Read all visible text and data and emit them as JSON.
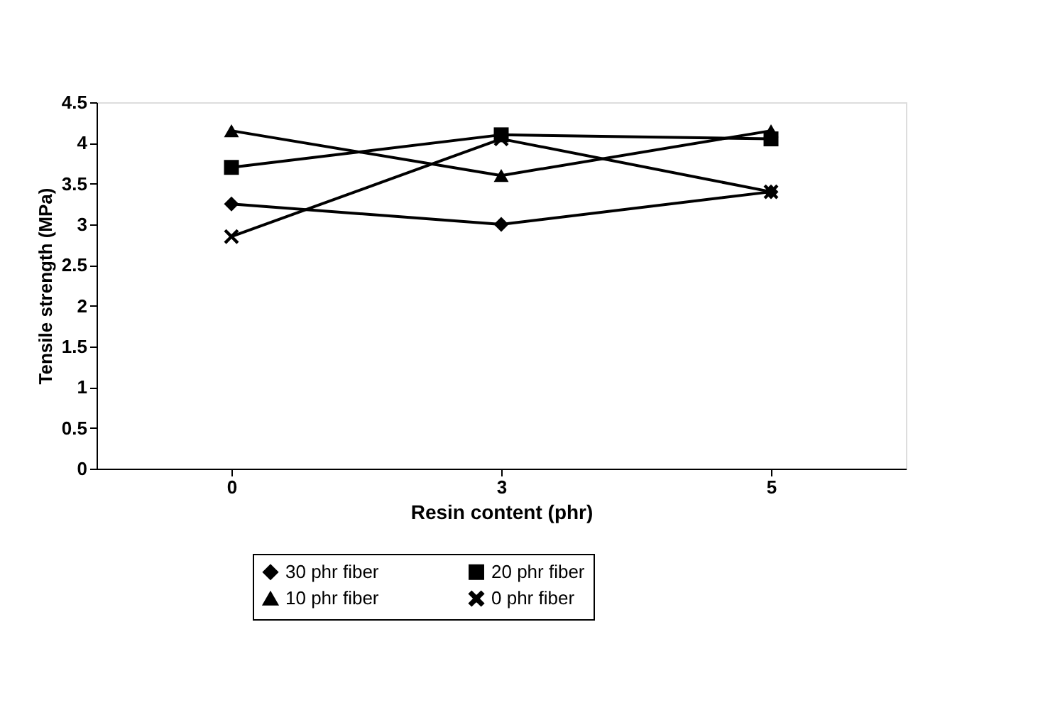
{
  "chart_data": {
    "type": "line",
    "xlabel": "Resin content (phr)",
    "ylabel": "Tensile strength (MPa)",
    "categories": [
      "0",
      "3",
      "5"
    ],
    "ylim": [
      0,
      4.5
    ],
    "yticks": [
      0,
      0.5,
      1,
      1.5,
      2,
      2.5,
      3,
      3.5,
      4,
      4.5
    ],
    "grid": false,
    "legend": "bottom",
    "line_style": "solid",
    "series": [
      {
        "name": "30 phr fiber",
        "color": "#000000",
        "marker": "diamond",
        "values": [
          3.25,
          3.0,
          3.4
        ]
      },
      {
        "name": "20 phr fiber",
        "color": "#000000",
        "marker": "square",
        "values": [
          3.7,
          4.1,
          4.05
        ]
      },
      {
        "name": "10 phr fiber",
        "color": "#000000",
        "marker": "triangle",
        "values": [
          4.15,
          3.6,
          4.15
        ]
      },
      {
        "name": "0 phr fiber",
        "color": "#000000",
        "marker": "cross",
        "values": [
          2.85,
          4.05,
          3.4
        ]
      }
    ]
  }
}
